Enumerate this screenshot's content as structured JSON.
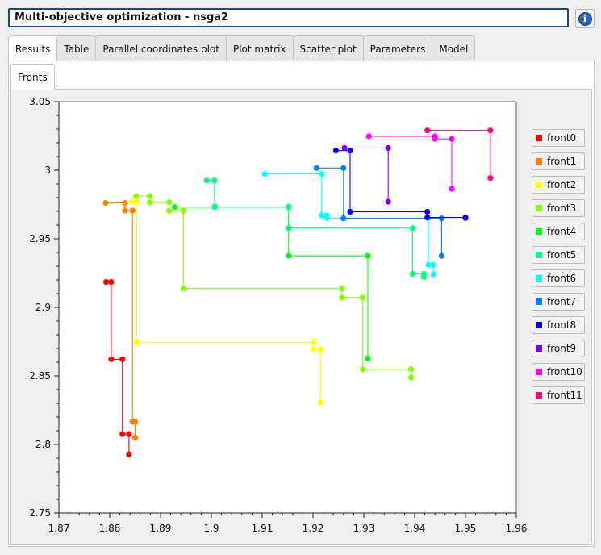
{
  "window": {
    "title": "Multi-objective optimization - nsga2"
  },
  "tabs": [
    "Results",
    "Table",
    "Parallel coordinates plot",
    "Plot matrix",
    "Scatter plot",
    "Parameters",
    "Model"
  ],
  "active_tab": "Results",
  "subtabs": [
    "Fronts"
  ],
  "chart_data": {
    "type": "line",
    "title": "",
    "xlabel": "",
    "ylabel": "",
    "xlim": [
      1.87,
      1.96
    ],
    "ylim": [
      2.75,
      3.05
    ],
    "x_ticks": [
      "1.87",
      "1.88",
      "1.89",
      "1.9",
      "1.91",
      "1.92",
      "1.93",
      "1.94",
      "1.95",
      "1.96"
    ],
    "y_ticks": [
      "2.75",
      "2.8",
      "2.85",
      "2.9",
      "2.95",
      "3",
      "3.05"
    ],
    "legend_position": "right",
    "series": [
      {
        "name": "front0",
        "color": "#ff0000",
        "points": [
          [
            1.8793,
            2.9185
          ],
          [
            1.8803,
            2.9185
          ],
          [
            1.8803,
            2.8622
          ],
          [
            1.8825,
            2.8622
          ],
          [
            1.8825,
            2.8075
          ],
          [
            1.8838,
            2.8075
          ],
          [
            1.8838,
            2.7929
          ]
        ]
      },
      {
        "name": "front1",
        "color": "#ff7f00",
        "points": [
          [
            1.8792,
            2.9761
          ],
          [
            1.883,
            2.9761
          ],
          [
            1.883,
            2.9706
          ],
          [
            1.8845,
            2.9706
          ],
          [
            1.8845,
            2.8166
          ],
          [
            1.885,
            2.8166
          ],
          [
            1.885,
            2.8049
          ]
        ]
      },
      {
        "name": "front2",
        "color": "#ffff00",
        "points": [
          [
            1.8843,
            2.9771
          ],
          [
            1.8853,
            2.9771
          ],
          [
            1.8853,
            2.8745
          ],
          [
            1.9201,
            2.8745
          ],
          [
            1.9201,
            2.8694
          ],
          [
            1.9215,
            2.8694
          ],
          [
            1.9215,
            2.8306
          ]
        ]
      },
      {
        "name": "front3",
        "color": "#7fff00",
        "points": [
          [
            1.8852,
            2.9812
          ],
          [
            1.8879,
            2.9812
          ],
          [
            1.8879,
            2.9766
          ],
          [
            1.8917,
            2.9766
          ],
          [
            1.8917,
            2.9704
          ],
          [
            1.8945,
            2.9704
          ],
          [
            1.8945,
            2.9137
          ],
          [
            1.9257,
            2.9137
          ],
          [
            1.9257,
            2.9072
          ],
          [
            1.9298,
            2.9072
          ],
          [
            1.9298,
            2.8548
          ],
          [
            1.9393,
            2.8548
          ],
          [
            1.9393,
            2.8489
          ]
        ]
      },
      {
        "name": "front4",
        "color": "#00ff00",
        "points": [
          [
            1.8928,
            2.9732
          ],
          [
            1.9007,
            2.9732
          ],
          [
            1.9007,
            2.9732
          ],
          [
            1.9152,
            2.9732
          ],
          [
            1.9152,
            2.9375
          ],
          [
            1.9308,
            2.9375
          ],
          [
            1.9308,
            2.8627
          ]
        ]
      },
      {
        "name": "front5",
        "color": "#00ff7f",
        "points": [
          [
            1.8991,
            2.9925
          ],
          [
            1.9006,
            2.9925
          ],
          [
            1.9006,
            2.9732
          ],
          [
            1.9152,
            2.9732
          ],
          [
            1.9152,
            2.9578
          ],
          [
            1.9396,
            2.9578
          ],
          [
            1.9396,
            2.9244
          ],
          [
            1.9418,
            2.9244
          ],
          [
            1.9418,
            2.9222
          ]
        ]
      },
      {
        "name": "front6",
        "color": "#00ffff",
        "points": [
          [
            1.9105,
            2.9973
          ],
          [
            1.9217,
            2.9973
          ],
          [
            1.9217,
            2.967
          ],
          [
            1.9227,
            2.967
          ],
          [
            1.9227,
            2.9651
          ],
          [
            1.9427,
            2.9651
          ],
          [
            1.9427,
            2.931
          ],
          [
            1.9437,
            2.931
          ],
          [
            1.9437,
            2.9241
          ]
        ]
      },
      {
        "name": "front7",
        "color": "#007fff",
        "points": [
          [
            1.9207,
            3.0016
          ],
          [
            1.926,
            3.0016
          ],
          [
            1.926,
            2.9649
          ],
          [
            1.9453,
            2.9649
          ],
          [
            1.9453,
            2.9375
          ]
        ]
      },
      {
        "name": "front8",
        "color": "#0000ff",
        "points": [
          [
            1.9245,
            3.0143
          ],
          [
            1.9273,
            3.0143
          ],
          [
            1.9273,
            2.9697
          ],
          [
            1.9425,
            2.9697
          ],
          [
            1.9425,
            2.9655
          ],
          [
            1.95,
            2.9655
          ],
          [
            1.95,
            2.9652
          ]
        ]
      },
      {
        "name": "front9",
        "color": "#7f00ff",
        "points": [
          [
            1.9262,
            3.0162
          ],
          [
            1.9348,
            3.0162
          ],
          [
            1.9348,
            2.977
          ]
        ]
      },
      {
        "name": "front10",
        "color": "#ff00ff",
        "points": [
          [
            1.931,
            3.0247
          ],
          [
            1.944,
            3.0247
          ],
          [
            1.944,
            3.0228
          ],
          [
            1.9473,
            3.0228
          ],
          [
            1.9473,
            2.9864
          ]
        ]
      },
      {
        "name": "front11",
        "color": "#ff007f",
        "points": [
          [
            1.9425,
            3.029
          ],
          [
            1.9549,
            3.029
          ],
          [
            1.9549,
            2.9943
          ]
        ]
      }
    ]
  }
}
